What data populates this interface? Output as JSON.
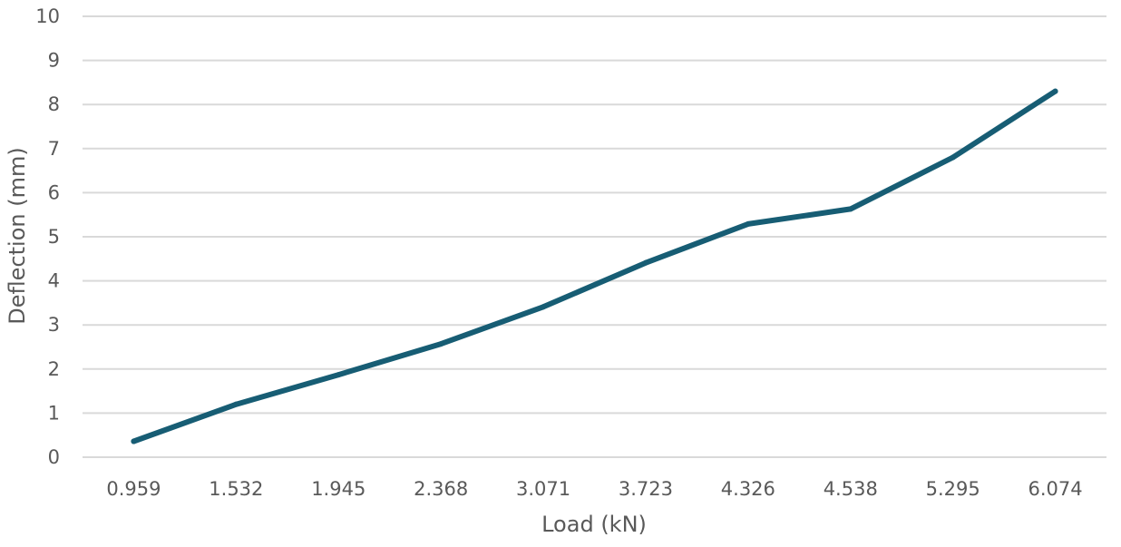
{
  "chart_data": {
    "type": "line",
    "title": "",
    "xlabel": "Load (kN)",
    "ylabel": "Deflection (mm)",
    "categories": [
      "0.959",
      "1.532",
      "1.945",
      "2.368",
      "3.071",
      "3.723",
      "4.326",
      "4.538",
      "5.295",
      "6.074"
    ],
    "series": [
      {
        "values": [
          0.36,
          1.2,
          1.87,
          2.57,
          3.41,
          4.41,
          5.29,
          5.63,
          6.8,
          8.3
        ],
        "color": "#175d74"
      }
    ],
    "ylim": [
      0,
      10
    ],
    "yticks": [
      "0",
      "1",
      "2",
      "3",
      "4",
      "5",
      "6",
      "7",
      "8",
      "9",
      "10"
    ],
    "grid": "horizontal",
    "legend": "none"
  }
}
